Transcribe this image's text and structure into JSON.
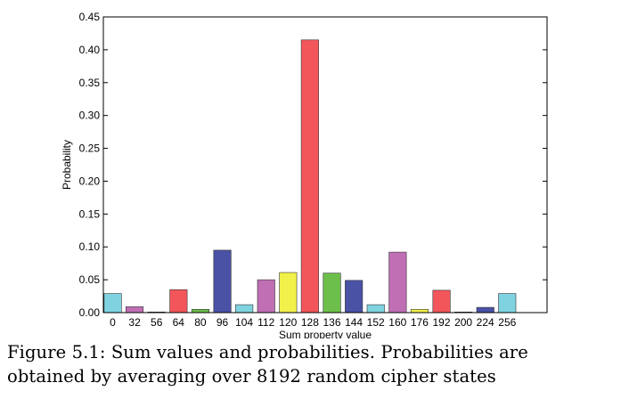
{
  "chart_data": {
    "type": "bar",
    "categories": [
      "0",
      "32",
      "56",
      "64",
      "80",
      "96",
      "104",
      "112",
      "120",
      "128",
      "136",
      "144",
      "152",
      "160",
      "176",
      "192",
      "200",
      "224",
      "256"
    ],
    "values": [
      0.029,
      0.009,
      0.001,
      0.035,
      0.005,
      0.095,
      0.012,
      0.05,
      0.061,
      0.415,
      0.06,
      0.049,
      0.012,
      0.092,
      0.005,
      0.034,
      0.001,
      0.008,
      0.029
    ],
    "colors": [
      "#7fd3e0",
      "#c06fb4",
      "#f2f04a",
      "#f2565b",
      "#6cbf4b",
      "#4a52a6",
      "#7fd3e0",
      "#c06fb4",
      "#f2f04a",
      "#f2565b",
      "#6cbf4b",
      "#4a52a6",
      "#7fd3e0",
      "#c06fb4",
      "#f2f04a",
      "#f2565b",
      "#6cbf4b",
      "#4a52a6",
      "#7fd3e0"
    ],
    "yticks": [
      "0.00",
      "0.05",
      "0.10",
      "0.15",
      "0.20",
      "0.25",
      "0.30",
      "0.35",
      "0.40",
      "0.45"
    ],
    "ylim": [
      0,
      0.45
    ],
    "xlabel": "Sum property value",
    "ylabel": "Probability",
    "grid": false
  },
  "caption": {
    "line1": "Figure 5.1: Sum values and probabilities. Probabilities are",
    "line2": "obtained by averaging over 8192 random cipher states"
  }
}
